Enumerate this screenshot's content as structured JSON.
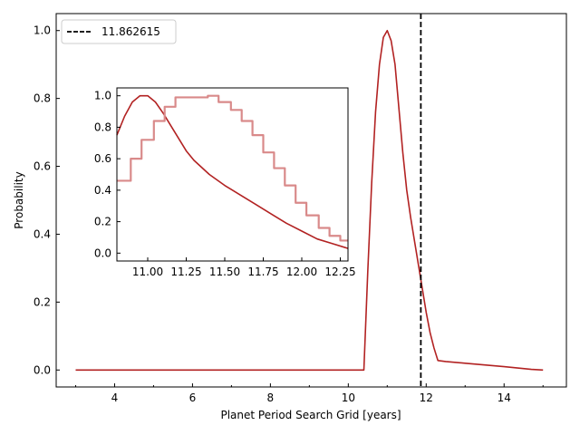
{
  "chart_data": [
    {
      "type": "line",
      "role": "main",
      "xlabel": "Planet Period Search Grid [years]",
      "ylabel": "Probability",
      "xlim": [
        2.5,
        15.6
      ],
      "ylim": [
        -0.05,
        1.05
      ],
      "xticks": [
        4,
        6,
        8,
        10,
        12,
        14
      ],
      "yticks": [
        0.0,
        0.2,
        0.4,
        0.6,
        0.8,
        1.0
      ],
      "xtick_labels": [
        "4",
        "6",
        "8",
        "10",
        "12",
        "14"
      ],
      "ytick_labels": [
        "0.0",
        "0.2",
        "0.4",
        "0.6",
        "0.8",
        "1.0"
      ],
      "grid": false,
      "legend": {
        "placement": "top-left",
        "entries": [
          "11.862615"
        ]
      },
      "series": [
        {
          "color": "#b22222",
          "style": "solid",
          "x": [
            3.0,
            4.0,
            5.0,
            6.0,
            7.0,
            8.0,
            9.0,
            10.0,
            10.4,
            10.5,
            10.6,
            10.7,
            10.8,
            10.9,
            11.0,
            11.1,
            11.2,
            11.3,
            11.4,
            11.5,
            11.6,
            11.7,
            11.8,
            11.9,
            12.0,
            12.1,
            12.2,
            12.3,
            12.5,
            13.0,
            14.0,
            14.7,
            15.0
          ],
          "y": [
            0.0,
            0.0,
            0.0,
            0.0,
            0.0,
            0.0,
            0.0,
            0.0,
            0.0,
            0.29,
            0.55,
            0.76,
            0.9,
            0.98,
            1.0,
            0.97,
            0.9,
            0.77,
            0.64,
            0.53,
            0.45,
            0.38,
            0.31,
            0.24,
            0.17,
            0.11,
            0.065,
            0.028,
            0.025,
            0.02,
            0.01,
            0.002,
            0.0
          ]
        },
        {
          "color": "#000000",
          "style": "dashed",
          "vertical_line_x": 11.862615
        }
      ]
    },
    {
      "type": "line",
      "role": "inset",
      "xlim": [
        10.8,
        12.3
      ],
      "ylim": [
        -0.05,
        1.05
      ],
      "xticks": [
        11.0,
        11.25,
        11.5,
        11.75,
        12.0,
        12.25
      ],
      "yticks": [
        0.0,
        0.2,
        0.4,
        0.6,
        0.8,
        1.0
      ],
      "xtick_labels": [
        "11.00",
        "11.25",
        "11.50",
        "11.75",
        "12.00",
        "12.25"
      ],
      "ytick_labels": [
        "0.0",
        "0.2",
        "0.4",
        "0.6",
        "0.8",
        "1.0"
      ],
      "grid": false,
      "series": [
        {
          "color": "#b22222",
          "style": "solid",
          "x": [
            10.8,
            10.85,
            10.9,
            10.95,
            11.0,
            11.05,
            11.1,
            11.15,
            11.2,
            11.25,
            11.3,
            11.4,
            11.5,
            11.6,
            11.7,
            11.8,
            11.9,
            12.0,
            12.1,
            12.2,
            12.3
          ],
          "y": [
            0.75,
            0.87,
            0.96,
            1.0,
            1.0,
            0.96,
            0.89,
            0.81,
            0.73,
            0.65,
            0.59,
            0.5,
            0.43,
            0.37,
            0.31,
            0.25,
            0.19,
            0.14,
            0.09,
            0.06,
            0.03
          ]
        },
        {
          "color": "#d98a8a",
          "style": "step",
          "x": [
            10.8,
            10.82,
            10.89,
            10.96,
            11.04,
            11.11,
            11.18,
            11.25,
            11.32,
            11.39,
            11.46,
            11.54,
            11.61,
            11.68,
            11.75,
            11.82,
            11.89,
            11.96,
            12.03,
            12.11,
            12.18,
            12.25,
            12.3
          ],
          "y": [
            0.46,
            0.46,
            0.6,
            0.72,
            0.84,
            0.93,
            0.99,
            0.99,
            0.99,
            1.0,
            0.96,
            0.91,
            0.84,
            0.75,
            0.64,
            0.54,
            0.43,
            0.32,
            0.24,
            0.16,
            0.11,
            0.08,
            0.08
          ]
        }
      ]
    }
  ]
}
